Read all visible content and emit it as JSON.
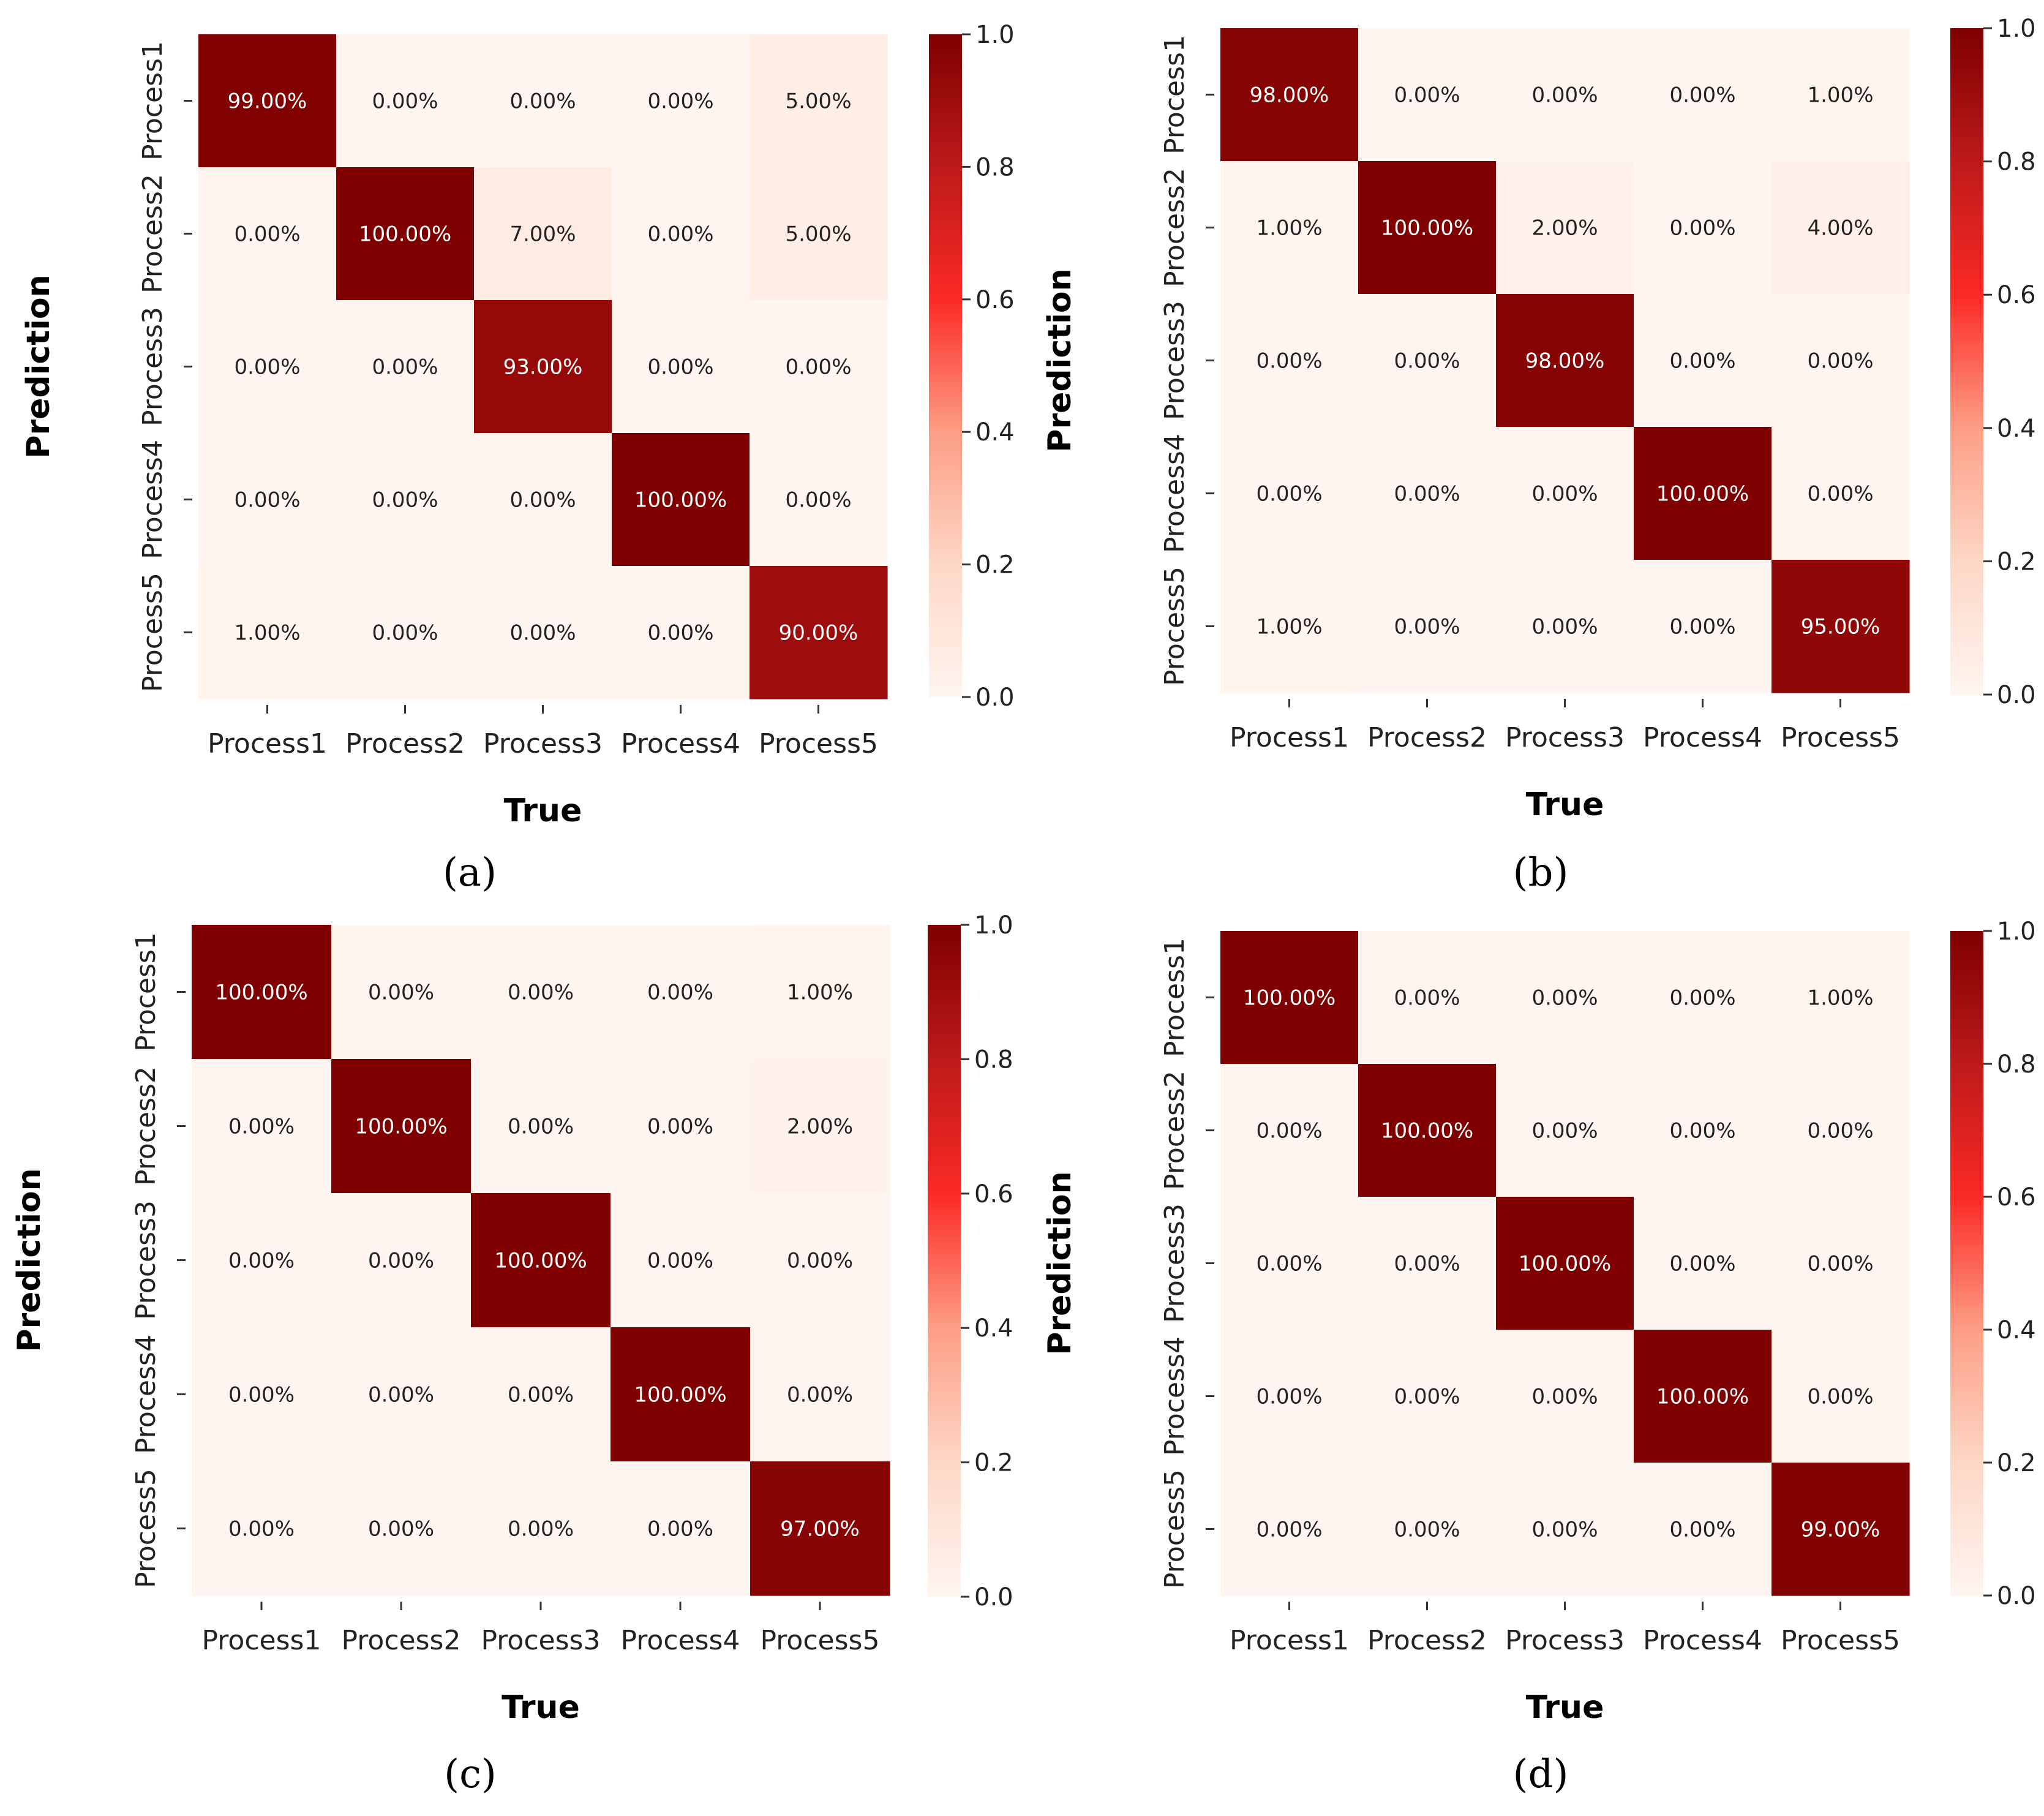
{
  "figure": {
    "panels": [
      {
        "caption": "(a)"
      },
      {
        "caption": "(b)"
      },
      {
        "caption": "(c)"
      },
      {
        "caption": "(d)"
      }
    ]
  },
  "colors": {
    "low": "#fff5f0",
    "mid": "#fb2a25",
    "high": "#7f0000",
    "text_dark": "#222222",
    "text_light": "#ffffff"
  },
  "chart_data": [
    {
      "type": "heatmap",
      "panel": "(a)",
      "title": "",
      "xlabel": "True",
      "ylabel": "Prediction",
      "x_categories": [
        "Process1",
        "Process2",
        "Process3",
        "Process4",
        "Process5"
      ],
      "y_categories": [
        "Process1",
        "Process2",
        "Process3",
        "Process4",
        "Process5"
      ],
      "values": [
        [
          0.99,
          0.0,
          0.0,
          0.0,
          0.05
        ],
        [
          0.0,
          1.0,
          0.07,
          0.0,
          0.05
        ],
        [
          0.0,
          0.0,
          0.93,
          0.0,
          0.0
        ],
        [
          0.0,
          0.0,
          0.0,
          1.0,
          0.0
        ],
        [
          0.01,
          0.0,
          0.0,
          0.0,
          0.9
        ]
      ],
      "cell_labels": [
        [
          "99.00%",
          "0.00%",
          "0.00%",
          "0.00%",
          "5.00%"
        ],
        [
          "0.00%",
          "100.00%",
          "7.00%",
          "0.00%",
          "5.00%"
        ],
        [
          "0.00%",
          "0.00%",
          "93.00%",
          "0.00%",
          "0.00%"
        ],
        [
          "0.00%",
          "0.00%",
          "0.00%",
          "100.00%",
          "0.00%"
        ],
        [
          "1.00%",
          "0.00%",
          "0.00%",
          "0.00%",
          "90.00%"
        ]
      ],
      "colorbar": {
        "range": [
          0,
          1
        ],
        "ticks": [
          "0.0",
          "0.2",
          "0.4",
          "0.6",
          "0.8",
          "1.0"
        ]
      }
    },
    {
      "type": "heatmap",
      "panel": "(b)",
      "title": "",
      "xlabel": "True",
      "ylabel": "Prediction",
      "x_categories": [
        "Process1",
        "Process2",
        "Process3",
        "Process4",
        "Process5"
      ],
      "y_categories": [
        "Process1",
        "Process2",
        "Process3",
        "Process4",
        "Process5"
      ],
      "values": [
        [
          0.98,
          0.0,
          0.0,
          0.0,
          0.01
        ],
        [
          0.01,
          1.0,
          0.02,
          0.0,
          0.04
        ],
        [
          0.0,
          0.0,
          0.98,
          0.0,
          0.0
        ],
        [
          0.0,
          0.0,
          0.0,
          1.0,
          0.0
        ],
        [
          0.01,
          0.0,
          0.0,
          0.0,
          0.95
        ]
      ],
      "cell_labels": [
        [
          "98.00%",
          "0.00%",
          "0.00%",
          "0.00%",
          "1.00%"
        ],
        [
          "1.00%",
          "100.00%",
          "2.00%",
          "0.00%",
          "4.00%"
        ],
        [
          "0.00%",
          "0.00%",
          "98.00%",
          "0.00%",
          "0.00%"
        ],
        [
          "0.00%",
          "0.00%",
          "0.00%",
          "100.00%",
          "0.00%"
        ],
        [
          "1.00%",
          "0.00%",
          "0.00%",
          "0.00%",
          "95.00%"
        ]
      ],
      "colorbar": {
        "range": [
          0,
          1
        ],
        "ticks": [
          "0.0",
          "0.2",
          "0.4",
          "0.6",
          "0.8",
          "1.0"
        ]
      }
    },
    {
      "type": "heatmap",
      "panel": "(c)",
      "title": "",
      "xlabel": "True",
      "ylabel": "Prediction",
      "x_categories": [
        "Process1",
        "Process2",
        "Process3",
        "Process4",
        "Process5"
      ],
      "y_categories": [
        "Process1",
        "Process2",
        "Process3",
        "Process4",
        "Process5"
      ],
      "values": [
        [
          1.0,
          0.0,
          0.0,
          0.0,
          0.01
        ],
        [
          0.0,
          1.0,
          0.0,
          0.0,
          0.02
        ],
        [
          0.0,
          0.0,
          1.0,
          0.0,
          0.0
        ],
        [
          0.0,
          0.0,
          0.0,
          1.0,
          0.0
        ],
        [
          0.0,
          0.0,
          0.0,
          0.0,
          0.97
        ]
      ],
      "cell_labels": [
        [
          "100.00%",
          "0.00%",
          "0.00%",
          "0.00%",
          "1.00%"
        ],
        [
          "0.00%",
          "100.00%",
          "0.00%",
          "0.00%",
          "2.00%"
        ],
        [
          "0.00%",
          "0.00%",
          "100.00%",
          "0.00%",
          "0.00%"
        ],
        [
          "0.00%",
          "0.00%",
          "0.00%",
          "100.00%",
          "0.00%"
        ],
        [
          "0.00%",
          "0.00%",
          "0.00%",
          "0.00%",
          "97.00%"
        ]
      ],
      "colorbar": {
        "range": [
          0,
          1
        ],
        "ticks": [
          "0.0",
          "0.2",
          "0.4",
          "0.6",
          "0.8",
          "1.0"
        ]
      }
    },
    {
      "type": "heatmap",
      "panel": "(d)",
      "title": "",
      "xlabel": "True",
      "ylabel": "Prediction",
      "x_categories": [
        "Process1",
        "Process2",
        "Process3",
        "Process4",
        "Process5"
      ],
      "y_categories": [
        "Process1",
        "Process2",
        "Process3",
        "Process4",
        "Process5"
      ],
      "values": [
        [
          1.0,
          0.0,
          0.0,
          0.0,
          0.01
        ],
        [
          0.0,
          1.0,
          0.0,
          0.0,
          0.0
        ],
        [
          0.0,
          0.0,
          1.0,
          0.0,
          0.0
        ],
        [
          0.0,
          0.0,
          0.0,
          1.0,
          0.0
        ],
        [
          0.0,
          0.0,
          0.0,
          0.0,
          0.99
        ]
      ],
      "cell_labels": [
        [
          "100.00%",
          "0.00%",
          "0.00%",
          "0.00%",
          "1.00%"
        ],
        [
          "0.00%",
          "100.00%",
          "0.00%",
          "0.00%",
          "0.00%"
        ],
        [
          "0.00%",
          "0.00%",
          "100.00%",
          "0.00%",
          "0.00%"
        ],
        [
          "0.00%",
          "0.00%",
          "0.00%",
          "100.00%",
          "0.00%"
        ],
        [
          "0.00%",
          "0.00%",
          "0.00%",
          "0.00%",
          "99.00%"
        ]
      ],
      "colorbar": {
        "range": [
          0,
          1
        ],
        "ticks": [
          "0.0",
          "0.2",
          "0.4",
          "0.6",
          "0.8",
          "1.0"
        ]
      }
    }
  ]
}
